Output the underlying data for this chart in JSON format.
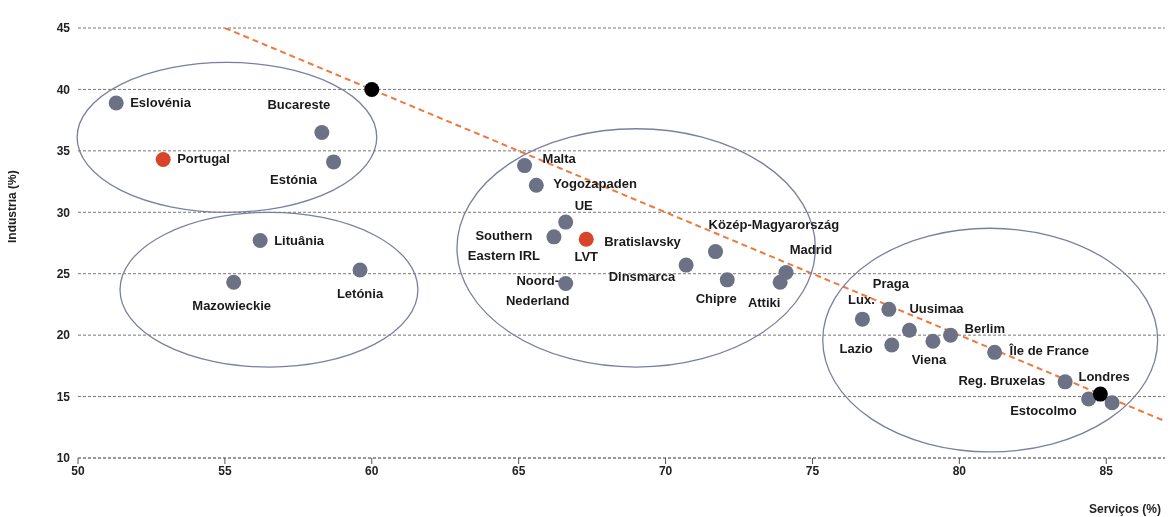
{
  "chart_data": {
    "type": "scatter",
    "xlabel": "Serviços (%)",
    "ylabel": "Indústria (%)",
    "xlim": [
      50,
      87
    ],
    "ylim": [
      10,
      45
    ],
    "xticks": [
      50,
      55,
      60,
      65,
      70,
      75,
      80,
      85
    ],
    "yticks": [
      10,
      15,
      20,
      25,
      30,
      35,
      40,
      45
    ],
    "grid": "y",
    "marker": "circle",
    "series": [
      {
        "color": "#6d7186",
        "x": [
          51.3,
          58.3,
          58.7,
          56.2,
          55.3,
          59.6,
          65.2,
          65.6,
          66.6,
          66.2,
          66.6,
          71.7,
          70.7,
          72.1,
          74.1,
          73.9,
          76.7,
          77.6,
          78.3,
          77.7,
          79.1,
          79.7,
          81.2,
          83.6,
          84.4,
          85.2
        ],
        "values": [
          38.9,
          36.5,
          34.1,
          27.7,
          24.3,
          25.3,
          33.8,
          32.2,
          29.2,
          28.0,
          24.2,
          26.8,
          25.7,
          24.5,
          25.1,
          24.3,
          21.3,
          22.1,
          20.4,
          19.2,
          19.5,
          20.0,
          18.6,
          16.2,
          14.8,
          14.5
        ]
      },
      {
        "color": "#d8432c",
        "x": [
          52.9,
          67.3
        ],
        "values": [
          34.3,
          27.8
        ]
      },
      {
        "color": "#000000",
        "x": [
          60,
          84.8
        ],
        "values": [
          40,
          15.2
        ]
      },
      {
        "type": "line",
        "color": "#f0783c",
        "x": [
          55,
          87
        ],
        "values": [
          45,
          13
        ],
        "line_style": "dashed",
        "marker": "none"
      }
    ],
    "annotations": [
      {
        "text": "Eslovénia",
        "x": 51.3,
        "y": 38.9
      },
      {
        "text": "Bucareste",
        "x": 58.3,
        "y": 36.5
      },
      {
        "text": "Estónia",
        "x": 58.7,
        "y": 34.1
      },
      {
        "text": "Portugal",
        "x": 52.9,
        "y": 34.3
      },
      {
        "text": "Lituânia",
        "x": 56.2,
        "y": 27.7
      },
      {
        "text": "Mazowieckie",
        "x": 55.3,
        "y": 24.3
      },
      {
        "text": "Letónia",
        "x": 59.6,
        "y": 25.3
      },
      {
        "text": "Malta",
        "x": 65.2,
        "y": 33.8
      },
      {
        "text": "Yogozapaden",
        "x": 65.6,
        "y": 32.2
      },
      {
        "text": "UE",
        "x": 66.6,
        "y": 29.2
      },
      {
        "text": "Southern\nEastern IRL",
        "x": 66.2,
        "y": 28.0
      },
      {
        "text": "LVT",
        "x": 67.3,
        "y": 27.8
      },
      {
        "text": "Bratislavsky",
        "x": 67.3,
        "y": 27.8
      },
      {
        "text": "Noord-\nNederland",
        "x": 66.6,
        "y": 24.2
      },
      {
        "text": "Közép-Magyarország",
        "x": 71.7,
        "y": 26.8
      },
      {
        "text": "Dinsmarca",
        "x": 70.7,
        "y": 25.7
      },
      {
        "text": "Chipre",
        "x": 72.1,
        "y": 24.5
      },
      {
        "text": "Madrid",
        "x": 74.1,
        "y": 25.1
      },
      {
        "text": "Attiki",
        "x": 73.9,
        "y": 24.3
      },
      {
        "text": "Lux.",
        "x": 76.7,
        "y": 21.3
      },
      {
        "text": "Praga",
        "x": 77.6,
        "y": 22.1
      },
      {
        "text": "Uusimaa",
        "x": 78.3,
        "y": 20.4
      },
      {
        "text": "Lazio",
        "x": 77.7,
        "y": 19.2
      },
      {
        "text": "Viena",
        "x": 79.1,
        "y": 19.5
      },
      {
        "text": "Berlim",
        "x": 79.7,
        "y": 20.0
      },
      {
        "text": "Île de France",
        "x": 81.2,
        "y": 18.6
      },
      {
        "text": "Reg. Bruxelas",
        "x": 83.6,
        "y": 16.2
      },
      {
        "text": "Estocolmo",
        "x": 84.4,
        "y": 14.8
      },
      {
        "text": "Londres",
        "x": 85.2,
        "y": 14.5
      }
    ]
  }
}
